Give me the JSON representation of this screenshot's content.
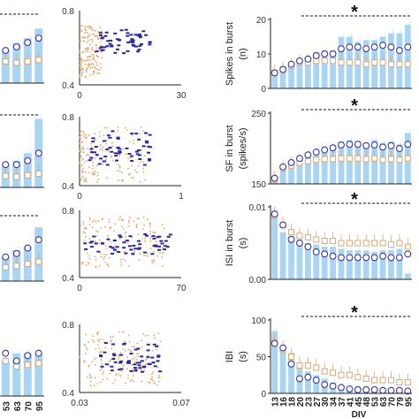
{
  "colors": {
    "bar": "#a9d4f2",
    "bar_light": "#d4ebfa",
    "circle": "#3a3aa0",
    "square": "#d9a878",
    "axis": "#222222",
    "scatter_orange": "#e3a56a",
    "scatter_blue": "#2a2a9a"
  },
  "chart_data": [
    {
      "type": "bar",
      "panel": "left-strip-1",
      "ylim": [
        0,
        1
      ],
      "values": [
        0.45,
        0.55,
        0.62,
        0.75
      ],
      "circles": [
        0.45,
        0.5,
        0.56,
        0.62
      ],
      "squares": [
        0.3,
        0.28,
        0.3,
        0.32
      ],
      "significance": "dashed"
    },
    {
      "type": "bar",
      "panel": "left-strip-2",
      "ylim": [
        0,
        1
      ],
      "values": [
        0.3,
        0.35,
        0.45,
        0.9
      ],
      "circles": [
        0.3,
        0.3,
        0.35,
        0.45
      ],
      "squares": [
        0.15,
        0.14,
        0.16,
        0.18
      ],
      "significance": "dashed"
    },
    {
      "type": "bar",
      "panel": "left-strip-3",
      "ylim": [
        0,
        1
      ],
      "values": [
        0.35,
        0.45,
        0.5,
        0.78
      ],
      "circles": [
        0.35,
        0.4,
        0.48,
        0.6
      ],
      "squares": [
        0.2,
        0.22,
        0.25,
        0.28
      ],
      "significance": "dashed"
    },
    {
      "type": "bar",
      "panel": "left-strip-4",
      "ylim": [
        0,
        1
      ],
      "values": [
        0.45,
        0.55,
        0.55,
        0.55
      ],
      "circles": [
        0.55,
        0.45,
        0.52,
        0.55
      ],
      "squares": [
        0.45,
        0.38,
        0.4,
        0.42
      ],
      "x_tick_labels": [
        "53",
        "63",
        "70",
        "95"
      ]
    },
    {
      "type": "scatter",
      "panel": "scatter-1",
      "xlim": [
        0,
        30
      ],
      "ylim": [
        0.4,
        0.8
      ],
      "x_ticks": [
        "0",
        "30"
      ],
      "y_ticks": [
        "0.4",
        "0.8"
      ]
    },
    {
      "type": "scatter",
      "panel": "scatter-2",
      "xlim": [
        0,
        1
      ],
      "ylim": [
        0.4,
        0.8
      ],
      "x_ticks": [
        "0",
        "1"
      ],
      "y_ticks": [
        "0.4",
        "0.8"
      ]
    },
    {
      "type": "scatter",
      "panel": "scatter-3",
      "xlim": [
        0,
        70
      ],
      "ylim": [
        0.4,
        0.8
      ],
      "x_ticks": [
        "0",
        "70"
      ],
      "y_ticks": [
        "0.4",
        "0.8"
      ]
    },
    {
      "type": "scatter",
      "panel": "scatter-4",
      "xlim": [
        0.03,
        0.07
      ],
      "ylim": [
        0.4,
        0.8
      ],
      "x_ticks": [
        "0.03",
        "0.07"
      ],
      "y_ticks": [
        "0.4",
        "0.8"
      ]
    },
    {
      "type": "bar",
      "panel": "spikes-in-burst",
      "ylabel": "Spikes in burst\n(n)",
      "ylim": [
        0,
        20
      ],
      "y_ticks": [
        "0",
        "10",
        "20"
      ],
      "values": [
        4.5,
        5.5,
        6.5,
        8,
        9,
        10.5,
        11,
        11,
        15,
        15,
        13.5,
        14,
        14,
        15,
        16,
        16,
        18.5
      ],
      "circles": [
        4.5,
        5.5,
        7,
        8,
        8.5,
        9.5,
        10,
        10,
        11.5,
        12,
        12,
        11.5,
        12,
        12.5,
        12,
        11,
        12
      ],
      "squares": [
        4.5,
        5.5,
        6.5,
        7.5,
        7.5,
        8,
        8,
        8,
        7.5,
        7.5,
        7.5,
        7,
        7.5,
        7.5,
        7,
        7,
        7
      ],
      "significance": "*"
    },
    {
      "type": "bar",
      "panel": "sf-in-burst",
      "ylabel": "SF in burst\n(spikes/s)",
      "ylim": [
        150,
        250
      ],
      "y_ticks": [
        "150",
        "250"
      ],
      "values": [
        158,
        172,
        178,
        186,
        194,
        198,
        202,
        205,
        210,
        212,
        210,
        208,
        212,
        208,
        210,
        206,
        222
      ],
      "circles": [
        158,
        174,
        180,
        186,
        191,
        195,
        198,
        201,
        205,
        206,
        206,
        204,
        205,
        202,
        204,
        200,
        206
      ],
      "squares": [
        156,
        172,
        176,
        180,
        182,
        184,
        185,
        185,
        186,
        186,
        186,
        185,
        186,
        184,
        185,
        184,
        186
      ],
      "significance": "*"
    },
    {
      "type": "bar",
      "panel": "isi-in-burst",
      "ylabel": "ISI in burst\n(s)",
      "ylim": [
        0,
        0.01
      ],
      "y_ticks": [
        "0.00",
        "0.01"
      ],
      "values": [
        0.0095,
        0.0065,
        0.006,
        0.0055,
        0.005,
        0.0048,
        0.0045,
        0.0045,
        0.0042,
        0.004,
        0.004,
        0.004,
        0.0038,
        0.004,
        0.004,
        0.0042,
        0.0008
      ],
      "circles": [
        0.009,
        0.0075,
        0.0055,
        0.005,
        0.0045,
        0.0038,
        0.0035,
        0.0032,
        0.003,
        0.003,
        0.003,
        0.003,
        0.003,
        0.0032,
        0.003,
        0.003,
        0.0035
      ],
      "squares": [
        0.0088,
        0.0075,
        0.0065,
        0.006,
        0.0058,
        0.0055,
        0.0053,
        0.0053,
        0.005,
        0.005,
        0.005,
        0.005,
        0.005,
        0.005,
        0.0048,
        0.005,
        0.0045
      ],
      "significance": "*"
    },
    {
      "type": "bar",
      "panel": "ibi",
      "ylabel": "IBI\n(s)",
      "ylim": [
        0,
        100
      ],
      "y_ticks": [
        "0",
        "50",
        "100"
      ],
      "x_tick_labels": [
        "13",
        "16",
        "18",
        "20",
        "23",
        "27",
        "30",
        "34",
        "37",
        "41",
        "45",
        "48",
        "53",
        "63",
        "70",
        "79",
        "95"
      ],
      "xlabel": "DIV",
      "values": [
        85,
        60,
        55,
        40,
        30,
        25,
        20,
        15,
        10,
        8,
        5,
        5,
        4,
        4,
        3,
        3,
        3
      ],
      "circles": [
        68,
        62,
        40,
        20,
        22,
        18,
        12,
        10,
        8,
        6,
        5,
        5,
        5,
        4,
        4,
        4,
        3
      ],
      "squares": [
        70,
        60,
        50,
        38,
        38,
        35,
        30,
        28,
        25,
        25,
        22,
        20,
        18,
        18,
        18,
        15,
        15
      ],
      "significance": "*"
    }
  ]
}
